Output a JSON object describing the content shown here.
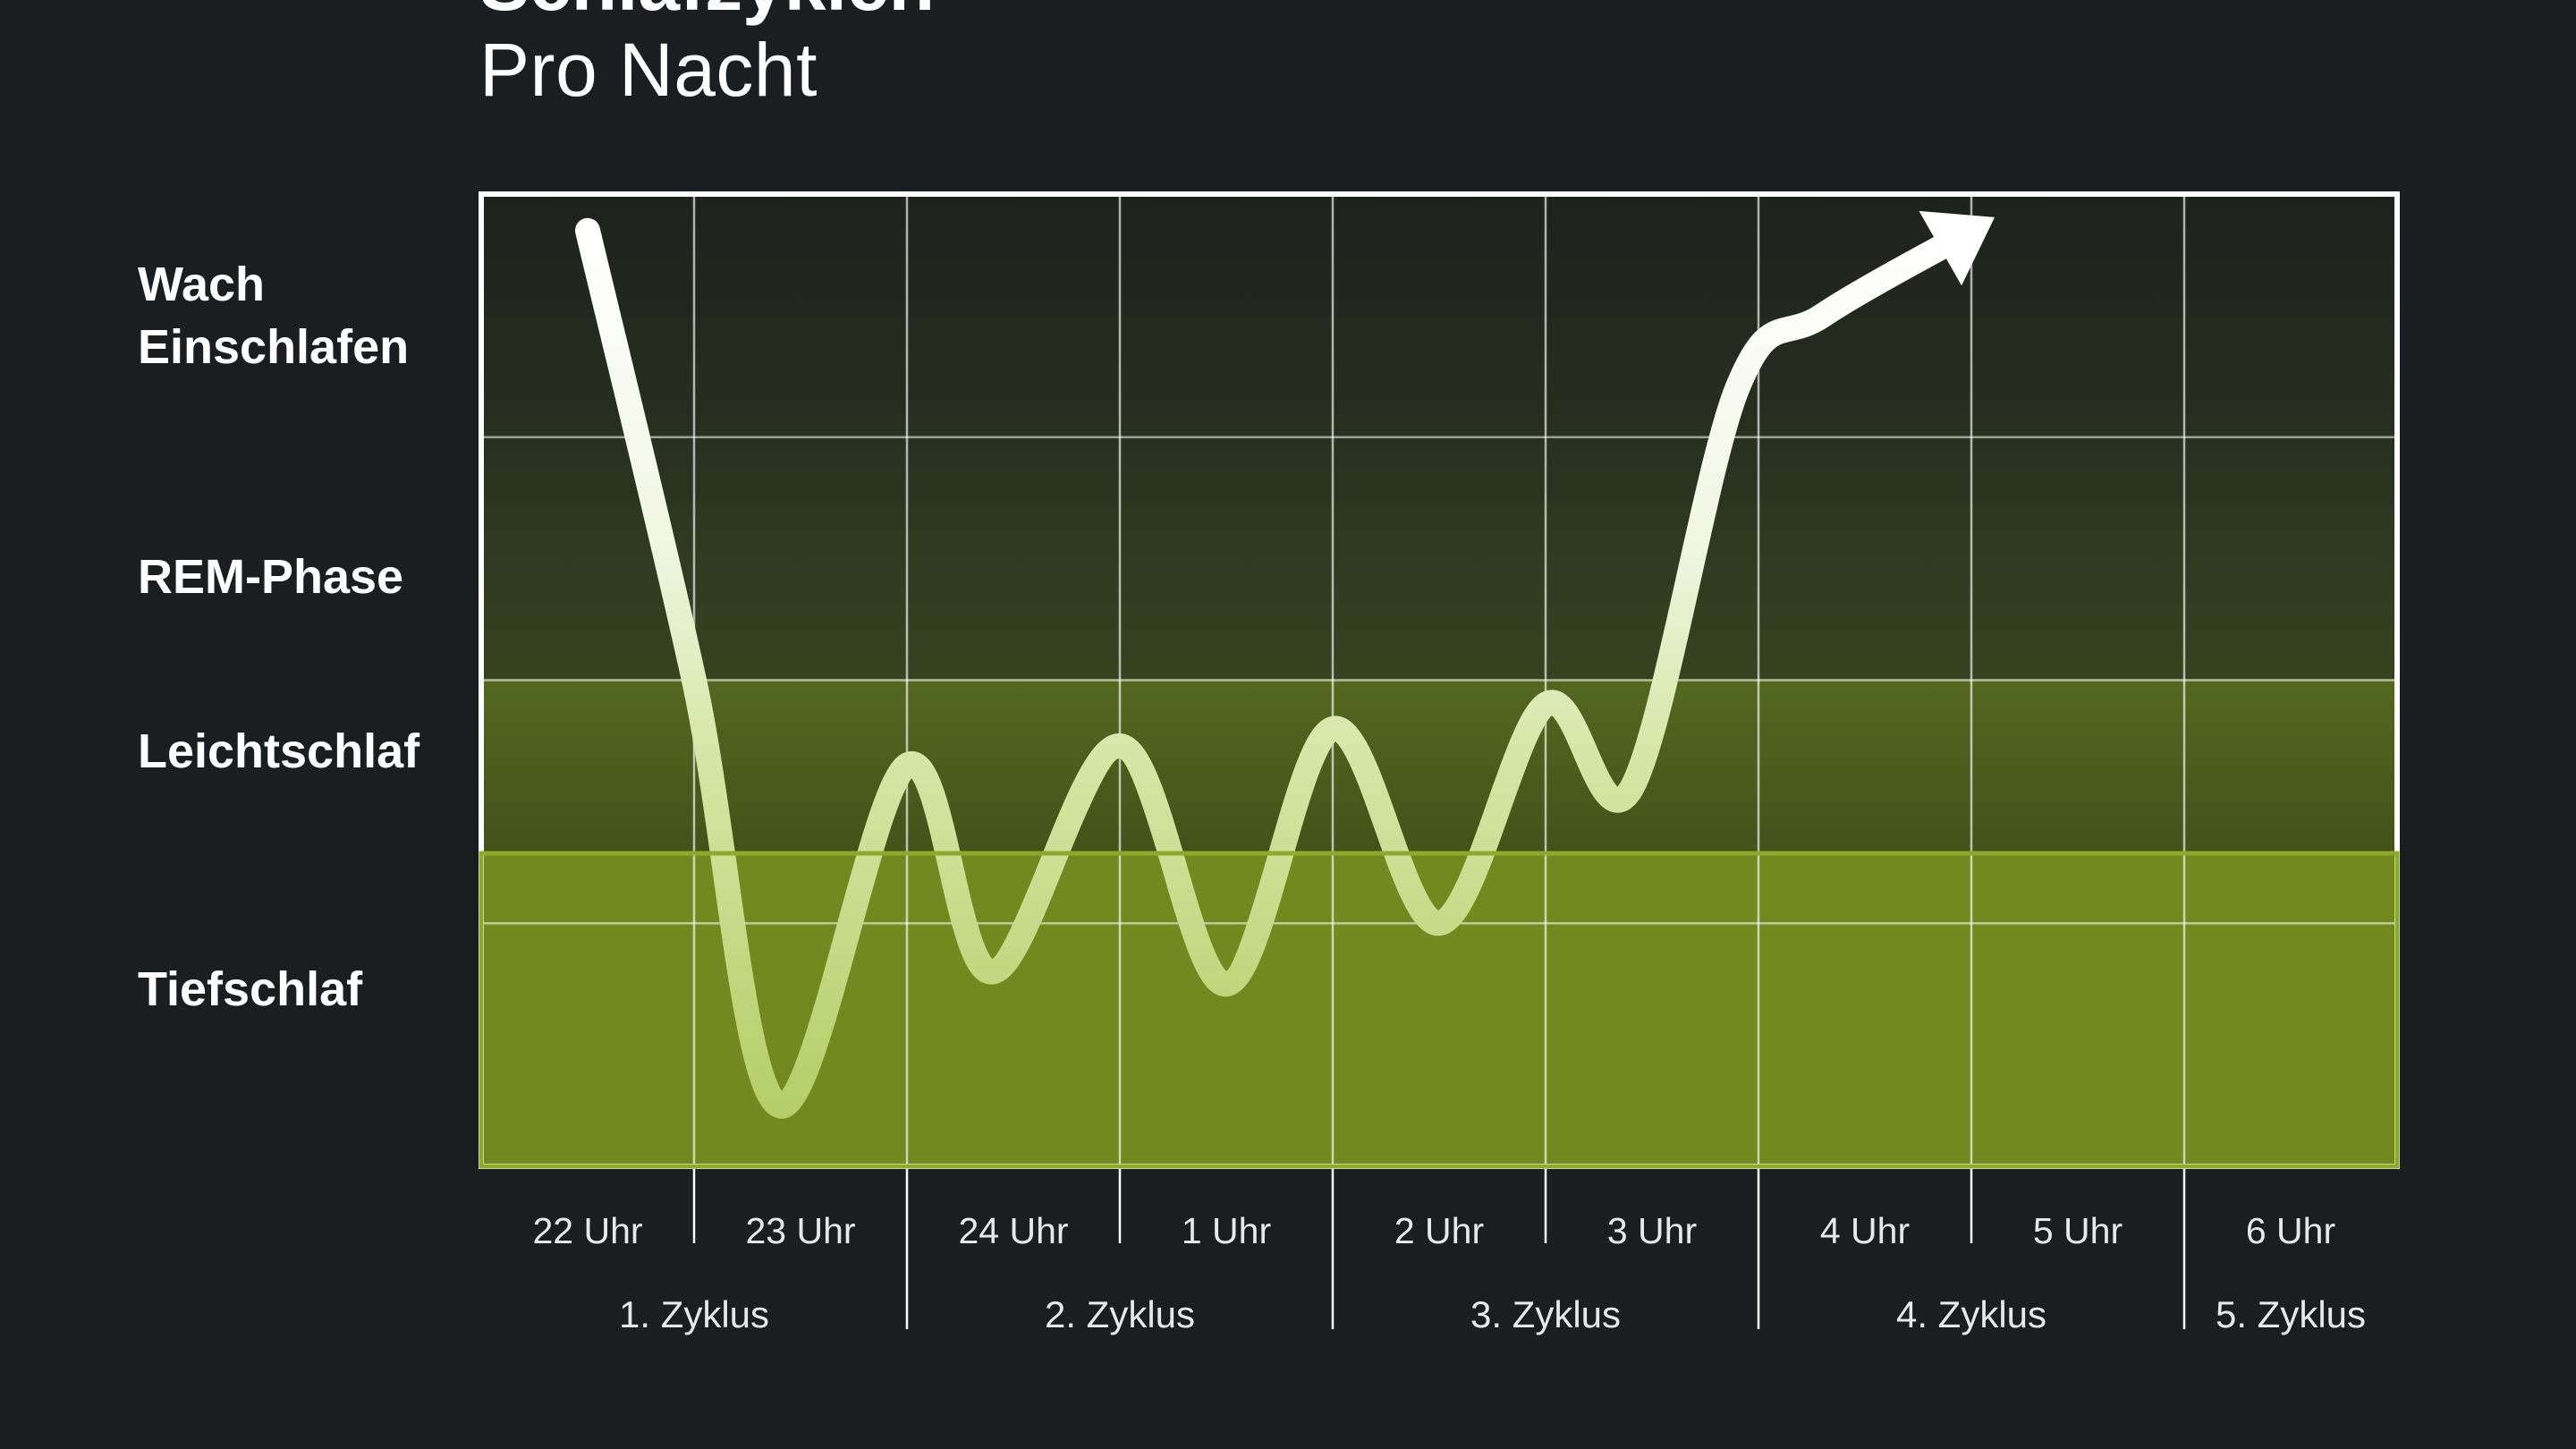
{
  "page": {
    "title": "Schlafzyklen",
    "subtitle": "Pro Nacht"
  },
  "chart_data": {
    "type": "line",
    "title": "",
    "subtitle": "Pro Nacht",
    "xlabel": "",
    "ylabel": "",
    "stages": [
      "Tiefschlaf",
      "Leichtschlaf",
      "REM-Phase",
      "Wach\nEinschlafen"
    ],
    "stage_labels": {
      "wake": [
        "Wach",
        "Einschlafen"
      ],
      "rem": "REM-Phase",
      "light": "Leichtschlaf",
      "deep": "Tiefschlaf"
    },
    "ticks": [
      "22 Uhr",
      "23 Uhr",
      "24 Uhr",
      "1 Uhr",
      "2 Uhr",
      "3 Uhr",
      "4 Uhr",
      "5 Uhr",
      "6 Uhr"
    ],
    "cycles": [
      "1. Zyklus",
      "2. Zyklus",
      "3. Zyklus",
      "4. Zyklus",
      "5. Zyklus"
    ],
    "ylim": [
      0,
      4
    ],
    "grid": true,
    "series": [
      {
        "x": [
          22.0,
          22.5,
          22.9,
          23.5,
          23.9,
          24.5,
          25.0,
          25.5,
          26.0,
          26.5,
          26.9,
          27.4,
          27.8,
          28.5
        ],
        "values": [
          3.85,
          2.0,
          0.25,
          1.65,
          0.8,
          1.73,
          0.75,
          1.8,
          1.0,
          1.9,
          1.55,
          3.2,
          3.5,
          3.85
        ]
      }
    ],
    "colors": {
      "background": "#1b1e21",
      "deep": "#71891f",
      "light": "#4d611c",
      "rem": "#2c3520",
      "wake": "#1f231d",
      "line": "#d8e9a8",
      "frame": "#ffffff"
    }
  }
}
